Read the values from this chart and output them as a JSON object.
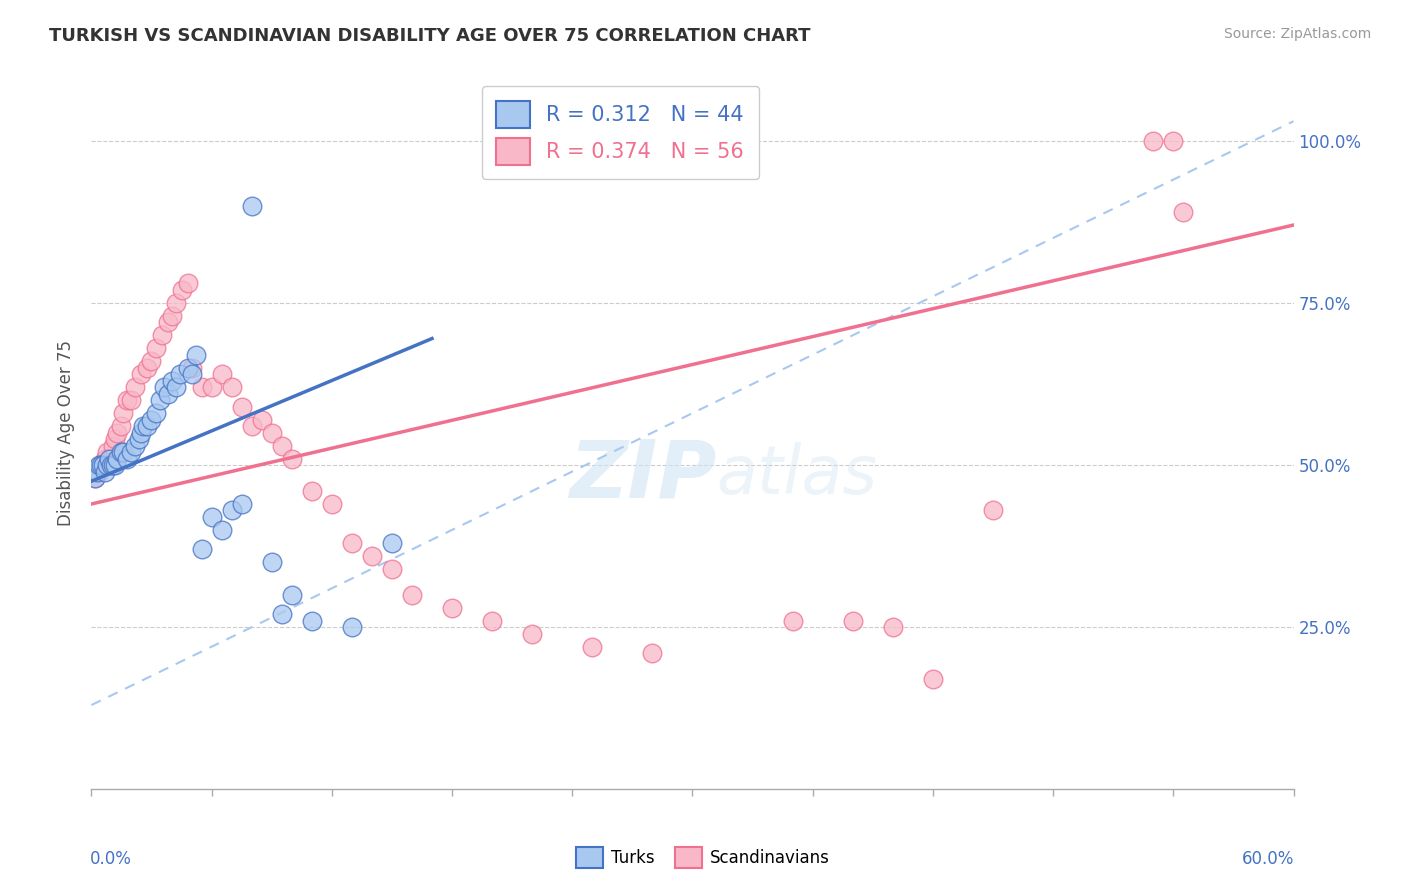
{
  "title": "TURKISH VS SCANDINAVIAN DISABILITY AGE OVER 75 CORRELATION CHART",
  "source": "Source: ZipAtlas.com",
  "ylabel": "Disability Age Over 75",
  "ytick_labels": [
    "25.0%",
    "50.0%",
    "75.0%",
    "100.0%"
  ],
  "legend_turks": "Turks",
  "legend_scandinavians": "Scandinavians",
  "R_turks": 0.312,
  "N_turks": 44,
  "R_scand": 0.374,
  "N_scand": 56,
  "turks_color": "#A8C8F0",
  "scand_color": "#F8B8C8",
  "turks_line_color": "#4472C4",
  "scand_line_color": "#F07090",
  "ref_line_color": "#A8C8F0",
  "xmin": 0.0,
  "xmax": 0.6,
  "ymin": 0.0,
  "ymax": 1.1,
  "turks_x": [
    0.002,
    0.003,
    0.004,
    0.005,
    0.006,
    0.007,
    0.008,
    0.009,
    0.01,
    0.011,
    0.012,
    0.013,
    0.015,
    0.016,
    0.018,
    0.02,
    0.022,
    0.024,
    0.025,
    0.026,
    0.028,
    0.03,
    0.032,
    0.034,
    0.036,
    0.038,
    0.04,
    0.042,
    0.044,
    0.048,
    0.05,
    0.052,
    0.055,
    0.06,
    0.065,
    0.07,
    0.075,
    0.08,
    0.09,
    0.095,
    0.1,
    0.11,
    0.13,
    0.15
  ],
  "turks_y": [
    0.48,
    0.49,
    0.5,
    0.5,
    0.5,
    0.49,
    0.5,
    0.51,
    0.5,
    0.5,
    0.5,
    0.51,
    0.52,
    0.52,
    0.51,
    0.52,
    0.53,
    0.54,
    0.55,
    0.56,
    0.56,
    0.57,
    0.58,
    0.6,
    0.62,
    0.61,
    0.63,
    0.62,
    0.64,
    0.65,
    0.64,
    0.67,
    0.37,
    0.42,
    0.4,
    0.43,
    0.44,
    0.9,
    0.35,
    0.27,
    0.3,
    0.26,
    0.25,
    0.38
  ],
  "scand_x": [
    0.002,
    0.004,
    0.005,
    0.006,
    0.007,
    0.008,
    0.009,
    0.01,
    0.011,
    0.012,
    0.013,
    0.015,
    0.016,
    0.018,
    0.02,
    0.022,
    0.025,
    0.028,
    0.03,
    0.032,
    0.035,
    0.038,
    0.04,
    0.042,
    0.045,
    0.048,
    0.05,
    0.055,
    0.06,
    0.065,
    0.07,
    0.075,
    0.08,
    0.085,
    0.09,
    0.095,
    0.1,
    0.11,
    0.12,
    0.13,
    0.14,
    0.15,
    0.16,
    0.18,
    0.2,
    0.22,
    0.25,
    0.28,
    0.35,
    0.38,
    0.4,
    0.42,
    0.45,
    0.53,
    0.54,
    0.545
  ],
  "scand_y": [
    0.48,
    0.49,
    0.5,
    0.5,
    0.51,
    0.52,
    0.5,
    0.51,
    0.53,
    0.54,
    0.55,
    0.56,
    0.58,
    0.6,
    0.6,
    0.62,
    0.64,
    0.65,
    0.66,
    0.68,
    0.7,
    0.72,
    0.73,
    0.75,
    0.77,
    0.78,
    0.65,
    0.62,
    0.62,
    0.64,
    0.62,
    0.59,
    0.56,
    0.57,
    0.55,
    0.53,
    0.51,
    0.46,
    0.44,
    0.38,
    0.36,
    0.34,
    0.3,
    0.28,
    0.26,
    0.24,
    0.22,
    0.21,
    0.26,
    0.26,
    0.25,
    0.17,
    0.43,
    1.0,
    1.0,
    0.89
  ],
  "turks_trend_x0": 0.0,
  "turks_trend_x1": 0.17,
  "turks_trend_y0": 0.475,
  "turks_trend_y1": 0.695,
  "scand_trend_x0": 0.0,
  "scand_trend_x1": 0.6,
  "scand_trend_y0": 0.44,
  "scand_trend_y1": 0.87,
  "ref_line_x0": 0.0,
  "ref_line_x1": 0.6,
  "ref_line_y0": 0.13,
  "ref_line_y1": 1.03
}
